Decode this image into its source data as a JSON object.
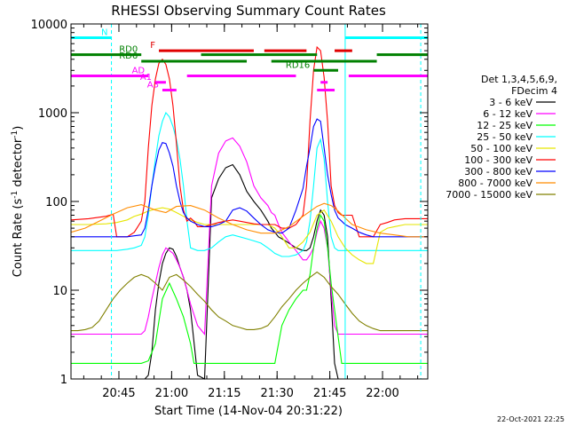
{
  "chart_data": {
    "type": "line",
    "title": "RHESSI Observing Summary Count Rates",
    "xlabel": "Start Time (14-Nov-04 20:31:22)",
    "ylabel_main": "Count Rate (s",
    "ylabel_sup1": "-1",
    "ylabel_mid": " detector",
    "ylabel_sup2": "-1",
    "ylabel_end": ")",
    "x_unit": "minutes since 20:31:22",
    "xlim": [
      0,
      101.5
    ],
    "ylim": [
      1,
      10000
    ],
    "yscale": "log",
    "x_ticks": [
      {
        "value": 13.63,
        "label": "20:45"
      },
      {
        "value": 28.63,
        "label": "21:00"
      },
      {
        "value": 43.63,
        "label": "21:15"
      },
      {
        "value": 58.63,
        "label": "21:30"
      },
      {
        "value": 73.63,
        "label": "21:45"
      },
      {
        "value": 88.63,
        "label": "22:00"
      }
    ],
    "y_ticks": [
      {
        "value": 1,
        "label": "1"
      },
      {
        "value": 10,
        "label": "10"
      },
      {
        "value": 100,
        "label": "100"
      },
      {
        "value": 1000,
        "label": "1000"
      },
      {
        "value": 10000,
        "label": "10000"
      }
    ],
    "legend_header": [
      "Det 1,3,4,5,6,9,",
      "FDecim 4"
    ],
    "series": [
      {
        "name": "3 - 6 keV",
        "color": "#000000",
        "x": [
          0,
          5,
          10,
          13,
          16,
          18,
          20,
          21,
          22,
          23,
          24,
          25,
          26,
          27,
          28,
          29,
          30,
          31,
          32,
          33,
          34,
          36,
          38,
          40,
          42,
          44,
          46,
          48,
          50,
          52,
          54,
          56,
          57,
          58,
          59,
          60,
          62,
          64,
          66,
          67,
          68,
          69,
          70,
          71,
          72,
          73,
          74,
          75,
          76,
          77,
          78,
          79,
          80,
          81,
          82,
          84,
          86,
          88,
          90,
          92,
          95,
          101.5
        ],
        "y": [
          1,
          1,
          1,
          1,
          1,
          1,
          1,
          1,
          1.1,
          2,
          6,
          12,
          20,
          26,
          30,
          29,
          24,
          18,
          14,
          10,
          6,
          1.1,
          1,
          110,
          180,
          240,
          260,
          200,
          130,
          100,
          80,
          60,
          50,
          45,
          40,
          38,
          34,
          30,
          28,
          28,
          30,
          40,
          60,
          80,
          70,
          40,
          8,
          1.5,
          1,
          1,
          1,
          1,
          1,
          1,
          1,
          1,
          1,
          1,
          1,
          1,
          1,
          1
        ]
      },
      {
        "name": "6 - 12 keV",
        "color": "#ff00ff",
        "x": [
          0,
          5,
          10,
          13,
          16,
          18,
          20,
          21,
          22,
          23,
          24,
          25,
          26,
          27,
          28,
          29,
          30,
          31,
          32,
          33,
          34,
          36,
          38,
          40,
          42,
          44,
          46,
          48,
          50,
          52,
          54,
          56,
          57,
          58,
          59,
          60,
          62,
          64,
          66,
          67,
          68,
          69,
          70,
          71,
          72,
          73,
          74,
          75,
          76,
          77,
          78,
          79,
          80,
          81,
          82,
          84,
          86,
          88,
          90,
          92,
          95,
          101.5
        ],
        "y": [
          3.2,
          3.2,
          3.2,
          3.2,
          3.2,
          3.2,
          3.2,
          3.5,
          5,
          8,
          12,
          18,
          25,
          30,
          28,
          26,
          22,
          18,
          14,
          10,
          7,
          4,
          3.2,
          150,
          350,
          480,
          520,
          420,
          280,
          150,
          110,
          90,
          75,
          70,
          55,
          45,
          35,
          28,
          22,
          22,
          25,
          30,
          45,
          60,
          50,
          30,
          10,
          4,
          3.2,
          3.2,
          3.2,
          3.2,
          3.2,
          3.2,
          3.2,
          3.2,
          3.2,
          3.2,
          3.2,
          3.2,
          3.2,
          3.2
        ]
      },
      {
        "name": "12 - 25 keV",
        "color": "#00ff00",
        "x": [
          0,
          5,
          10,
          13,
          16,
          18,
          20,
          22,
          24,
          26,
          28,
          30,
          32,
          34,
          35,
          36,
          38,
          40,
          42,
          44,
          46,
          48,
          50,
          52,
          54,
          56,
          58,
          60,
          62,
          64,
          66,
          67,
          68,
          69,
          70,
          71,
          72,
          73,
          74,
          75,
          76,
          77,
          78,
          80,
          82,
          84,
          86,
          88,
          90,
          92,
          95,
          101.5
        ],
        "y": [
          1.5,
          1.5,
          1.5,
          1.5,
          1.5,
          1.5,
          1.5,
          1.6,
          2.5,
          8,
          12,
          8,
          5,
          2.5,
          1.5,
          1.5,
          1.5,
          1.5,
          1.5,
          1.5,
          1.5,
          1.5,
          1.5,
          1.5,
          1.5,
          1.5,
          1.5,
          4,
          6,
          8,
          10,
          10,
          15,
          30,
          50,
          70,
          60,
          30,
          12,
          6,
          3,
          1.5,
          1.5,
          1.5,
          1.5,
          1.5,
          1.5,
          1.5,
          1.5,
          1.5,
          1.5,
          1.5
        ]
      },
      {
        "name": "25 - 50 keV",
        "color": "#00ffff",
        "x": [
          0,
          5,
          10,
          13,
          16,
          18,
          20,
          21,
          22,
          23,
          24,
          25,
          26,
          27,
          28,
          29,
          30,
          31,
          32,
          33,
          34,
          36,
          38,
          40,
          42,
          44,
          46,
          48,
          50,
          52,
          54,
          56,
          57,
          58,
          59,
          60,
          62,
          64,
          66,
          67,
          68,
          69,
          70,
          71,
          72,
          73,
          74,
          75,
          76,
          77,
          78,
          79,
          80,
          81,
          82,
          84,
          86,
          88,
          90,
          92,
          95,
          101.5
        ],
        "y": [
          28,
          28,
          28,
          28,
          29,
          30,
          32,
          40,
          70,
          150,
          300,
          550,
          800,
          1000,
          900,
          700,
          500,
          300,
          150,
          60,
          30,
          28,
          28,
          30,
          35,
          40,
          42,
          40,
          38,
          36,
          34,
          30,
          28,
          26,
          25,
          24,
          24,
          25,
          28,
          35,
          60,
          150,
          400,
          500,
          300,
          100,
          40,
          30,
          28,
          28,
          28,
          28,
          28,
          28,
          28,
          28,
          28,
          28,
          28,
          28,
          28,
          28
        ]
      },
      {
        "name": "50 - 100 keV",
        "color": "#e6e600",
        "x": [
          0,
          5,
          10,
          13,
          16,
          18,
          20,
          22,
          24,
          26,
          28,
          30,
          32,
          34,
          36,
          38,
          40,
          42,
          44,
          46,
          48,
          50,
          52,
          54,
          56,
          58,
          60,
          62,
          64,
          66,
          68,
          70,
          72,
          74,
          76,
          78,
          80,
          82,
          84,
          86,
          88,
          90,
          92,
          95,
          101.5
        ],
        "y": [
          55,
          55,
          56,
          58,
          62,
          68,
          72,
          78,
          82,
          85,
          82,
          75,
          68,
          62,
          58,
          55,
          55,
          55,
          55,
          55,
          55,
          55,
          55,
          55,
          55,
          50,
          40,
          30,
          30,
          35,
          45,
          70,
          80,
          60,
          40,
          30,
          25,
          22,
          20,
          20,
          45,
          50,
          52,
          55,
          55
        ]
      },
      {
        "name": "100 - 300 keV",
        "color": "#ff0000",
        "x": [
          0,
          5,
          10,
          12,
          13,
          14,
          16,
          18,
          20,
          21,
          22,
          23,
          24,
          25,
          26,
          27,
          28,
          29,
          30,
          31,
          32,
          33,
          34,
          35,
          36,
          38,
          40,
          42,
          44,
          46,
          48,
          50,
          52,
          54,
          56,
          58,
          60,
          62,
          64,
          66,
          67,
          68,
          69,
          70,
          71,
          72,
          73,
          74,
          75,
          76,
          77,
          78,
          80,
          82,
          84,
          86,
          88,
          90,
          92,
          95,
          101.5
        ],
        "y": [
          62,
          64,
          68,
          72,
          40,
          40,
          40,
          45,
          60,
          100,
          400,
          1200,
          2400,
          3600,
          4000,
          3500,
          2400,
          1200,
          450,
          150,
          80,
          60,
          65,
          60,
          52,
          52,
          55,
          58,
          60,
          62,
          60,
          58,
          56,
          55,
          55,
          55,
          50,
          50,
          55,
          70,
          150,
          800,
          3000,
          5500,
          5000,
          2500,
          800,
          150,
          90,
          75,
          70,
          70,
          70,
          40,
          40,
          40,
          55,
          58,
          62,
          64,
          64
        ]
      },
      {
        "name": "300 - 800 keV",
        "color": "#0000ff",
        "x": [
          0,
          5,
          10,
          13,
          16,
          18,
          20,
          21,
          22,
          23,
          24,
          25,
          26,
          27,
          28,
          29,
          30,
          31,
          32,
          33,
          34,
          36,
          38,
          40,
          42,
          44,
          46,
          48,
          50,
          52,
          54,
          56,
          58,
          60,
          62,
          64,
          66,
          67,
          68,
          69,
          70,
          71,
          72,
          73,
          74,
          75,
          76,
          77,
          78,
          80,
          82,
          84,
          86,
          88,
          90,
          92,
          95,
          101.5
        ],
        "y": [
          40,
          40,
          40,
          40,
          40,
          41,
          42,
          50,
          80,
          150,
          250,
          380,
          460,
          450,
          350,
          250,
          150,
          100,
          75,
          65,
          60,
          55,
          52,
          52,
          55,
          60,
          80,
          85,
          78,
          65,
          55,
          48,
          45,
          44,
          50,
          80,
          140,
          250,
          400,
          700,
          850,
          800,
          400,
          200,
          120,
          80,
          65,
          60,
          55,
          50,
          45,
          42,
          40,
          40,
          40,
          40,
          40,
          40
        ]
      },
      {
        "name": "800 - 7000 keV",
        "color": "#ff8c00",
        "x": [
          0,
          4,
          8,
          12,
          16,
          20,
          24,
          27,
          30,
          34,
          38,
          42,
          46,
          50,
          54,
          58,
          62,
          66,
          70,
          72,
          74,
          76,
          78,
          80,
          84,
          88,
          92,
          96,
          101.5
        ],
        "y": [
          45,
          50,
          60,
          72,
          85,
          92,
          80,
          75,
          88,
          90,
          80,
          65,
          55,
          48,
          44,
          44,
          52,
          68,
          88,
          95,
          90,
          78,
          65,
          55,
          48,
          44,
          42,
          40,
          40
        ]
      },
      {
        "name": "7000 - 15000 keV",
        "color": "#808000",
        "x": [
          0,
          2,
          4,
          6,
          8,
          10,
          12,
          14,
          16,
          18,
          20,
          22,
          24,
          26,
          28,
          30,
          32,
          34,
          36,
          38,
          40,
          42,
          44,
          46,
          48,
          50,
          52,
          54,
          56,
          58,
          60,
          62,
          64,
          66,
          68,
          70,
          72,
          74,
          76,
          78,
          80,
          82,
          84,
          86,
          88,
          90,
          92,
          95,
          101.5
        ],
        "y": [
          3.5,
          3.5,
          3.6,
          3.8,
          4.5,
          6,
          8,
          10,
          12,
          14,
          15,
          14,
          12,
          10,
          14,
          15,
          13,
          11,
          9,
          7.5,
          6,
          5,
          4.5,
          4,
          3.8,
          3.6,
          3.6,
          3.7,
          4,
          5,
          6.5,
          8,
          10,
          12,
          14,
          16,
          14,
          11,
          9,
          7,
          5.5,
          4.5,
          4,
          3.7,
          3.5,
          3.5,
          3.5,
          3.5,
          3.5
        ]
      }
    ],
    "bar_annotations": [
      {
        "label": "N",
        "color": "#00ffff",
        "y": 7000,
        "segments": [
          [
            0,
            11.5
          ],
          [
            78,
            101.5
          ]
        ]
      },
      {
        "label": "F",
        "color": "#e00000",
        "y": 5000,
        "segments": [
          [
            25,
            52
          ],
          [
            55,
            67
          ],
          [
            75,
            80
          ]
        ]
      },
      {
        "label": "RD0",
        "color": "#008000",
        "y": 4500,
        "segments": [
          [
            0,
            20
          ],
          [
            37,
            70
          ],
          [
            87,
            101.5
          ]
        ]
      },
      {
        "label": "RD6",
        "color": "#008000",
        "y": 3800,
        "segments": [
          [
            20,
            50
          ],
          [
            57,
            87
          ]
        ]
      },
      {
        "label": "RD16",
        "color": "#008000",
        "y": 3000,
        "segments": [
          [
            69,
            76
          ]
        ]
      },
      {
        "label": "AD",
        "color": "#ff00ff",
        "y": 2600,
        "segments": [
          [
            0,
            22
          ],
          [
            33,
            64
          ],
          [
            79,
            101.5
          ]
        ]
      },
      {
        "label": "A1",
        "color": "#ff00ff",
        "y": 2200,
        "segments": [
          [
            24,
            27
          ],
          [
            71,
            73
          ]
        ]
      },
      {
        "label": "A3",
        "color": "#ff00ff",
        "y": 1800,
        "segments": [
          [
            26,
            30
          ],
          [
            70,
            75
          ]
        ]
      }
    ],
    "vertical_markers": [
      {
        "x": 11.5,
        "style": "dashed",
        "color": "#00ffff"
      },
      {
        "x": 78,
        "style": "solid",
        "color": "#00ffff"
      },
      {
        "x": 99.5,
        "style": "dashed",
        "color": "#00ffff"
      }
    ],
    "footer_date": "22-Oct-2021 22:25"
  }
}
